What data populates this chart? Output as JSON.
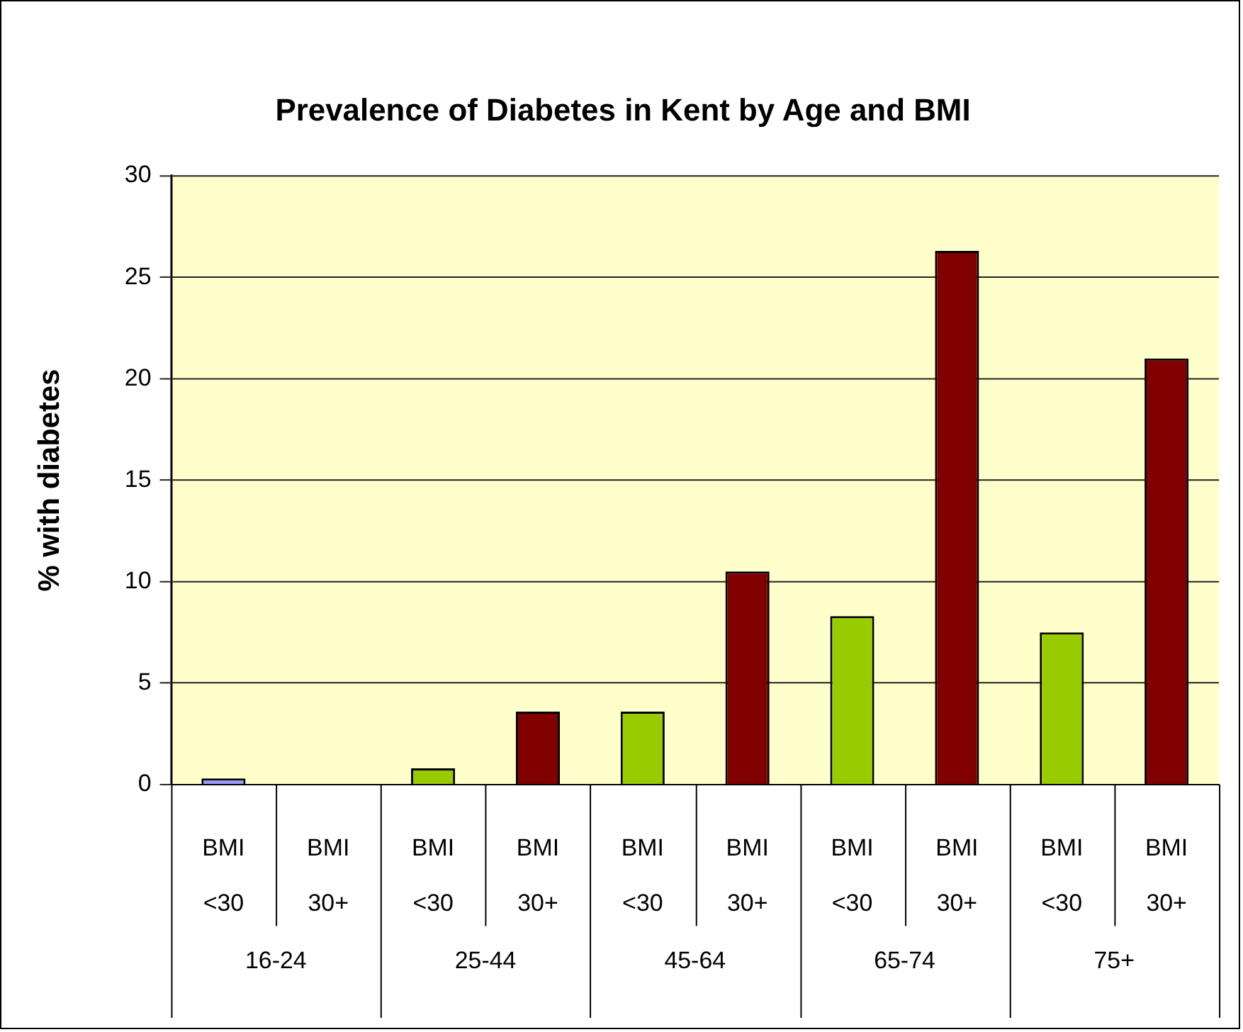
{
  "chart_data": {
    "type": "bar",
    "title": "Prevalence of Diabetes in Kent by Age and BMI",
    "ylabel": "% with diabetes",
    "categories": [
      "BMI <30",
      "BMI 30+",
      "BMI <30",
      "BMI 30+",
      "BMI <30",
      "BMI 30+",
      "BMI <30",
      "BMI 30+",
      "BMI <30",
      "BMI 30+"
    ],
    "values": [
      0.3,
      0,
      0.8,
      3.6,
      3.6,
      10.5,
      8.3,
      26.3,
      7.5,
      21.0
    ],
    "colors": [
      "#9999ff",
      "#800000",
      "#99cc00",
      "#800000",
      "#99cc00",
      "#800000",
      "#99cc00",
      "#800000",
      "#99cc00",
      "#800000"
    ],
    "ylim": [
      0,
      30
    ],
    "yticks": [
      0,
      5,
      10,
      15,
      20,
      25,
      30
    ],
    "grid": "y",
    "legend": false,
    "annotations": [
      "16-24",
      "25-44",
      "45-64",
      "65-74",
      "75+"
    ]
  }
}
